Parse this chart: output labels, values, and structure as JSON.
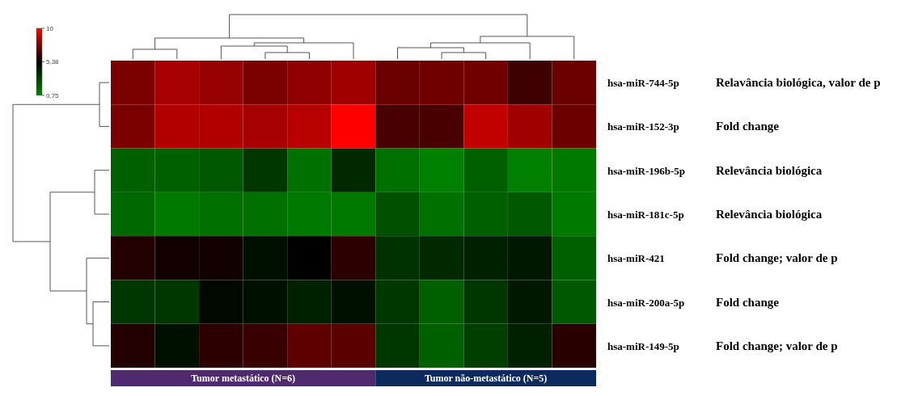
{
  "chart_data": {
    "type": "heatmap",
    "categories": [
      null,
      null,
      null,
      null,
      null,
      null,
      null,
      null,
      null,
      null,
      null
    ],
    "y_categories": [
      "hsa-miR-744-5p",
      "hsa-miR-152-3p",
      "hsa-miR-196b-5p",
      "hsa-miR-181c-5p",
      "hsa-miR-421",
      "hsa-miR-200a-5p",
      "hsa-miR-149-5p"
    ],
    "y2_categories": [
      "Relavância biológica, valor de p",
      "Fold change",
      "Relevância biológica",
      "Relevância biológica",
      "Fold change; valor de p",
      "Fold change",
      "Fold change; valor de p"
    ],
    "cells": [
      [
        7.6,
        8.4,
        8.1,
        7.6,
        8.0,
        8.3,
        7.3,
        7.4,
        7.4,
        6.5,
        7.3
      ],
      [
        7.6,
        8.6,
        8.6,
        8.4,
        8.7,
        10,
        6.7,
        6.7,
        8.9,
        8.3,
        7.3
      ],
      [
        1.9,
        1.9,
        2.2,
        3.4,
        1.3,
        3.9,
        1.3,
        0.75,
        1.9,
        0.8,
        1.0
      ],
      [
        1.6,
        1.0,
        1.3,
        1.3,
        1.0,
        1.0,
        2.5,
        1.3,
        1.9,
        2.2,
        1.0
      ],
      [
        6.0,
        5.7,
        5.7,
        4.8,
        5.4,
        6.2,
        3.6,
        3.9,
        4.2,
        4.5,
        1.9
      ],
      [
        3.4,
        3.4,
        5.1,
        4.8,
        4.2,
        4.8,
        3.4,
        1.9,
        3.4,
        4.5,
        2.2
      ],
      [
        6.0,
        4.8,
        6.2,
        6.4,
        7.1,
        7.0,
        3.4,
        1.9,
        3.1,
        4.2,
        6.1
      ]
    ],
    "clim": [
      0.75,
      10
    ],
    "cticks": [
      {
        "value": 0.75,
        "label": "0,75"
      },
      {
        "value": 5.38,
        "label": "5,38"
      },
      {
        "value": 10,
        "label": "10"
      }
    ],
    "annotations": [
      "Tumor metastático (N=6)",
      "Tumor não-metastático (N=5)"
    ]
  }
}
